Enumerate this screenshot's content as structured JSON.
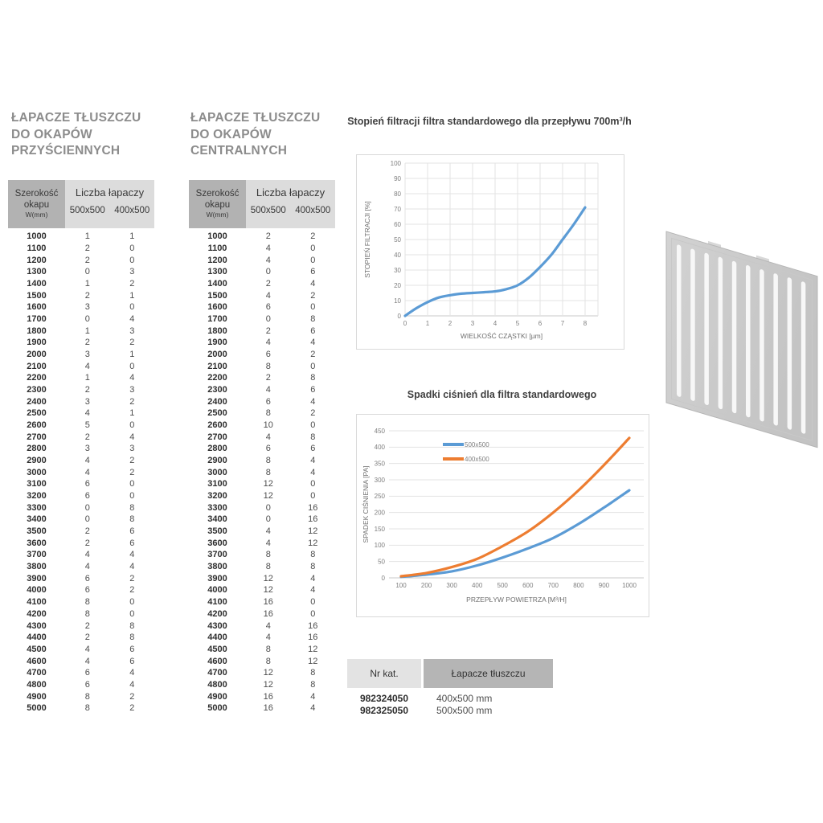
{
  "left_table": {
    "title_lines": [
      "ŁAPACZE TŁUSZCZU",
      "DO OKAPÓW",
      "PRZYŚCIENNYCH"
    ],
    "header": {
      "width_label": "Szerokość",
      "width_label2": "okapu",
      "width_unit": "W(mm)",
      "count_label": "Liczba łapaczy",
      "size_a": "500x500",
      "size_b": "400x500"
    },
    "rows": [
      [
        1000,
        1,
        1
      ],
      [
        1100,
        2,
        0
      ],
      [
        1200,
        2,
        0
      ],
      [
        1300,
        0,
        3
      ],
      [
        1400,
        1,
        2
      ],
      [
        1500,
        2,
        1
      ],
      [
        1600,
        3,
        0
      ],
      [
        1700,
        0,
        4
      ],
      [
        1800,
        1,
        3
      ],
      [
        1900,
        2,
        2
      ],
      [
        2000,
        3,
        1
      ],
      [
        2100,
        4,
        0
      ],
      [
        2200,
        1,
        4
      ],
      [
        2300,
        2,
        3
      ],
      [
        2400,
        3,
        2
      ],
      [
        2500,
        4,
        1
      ],
      [
        2600,
        5,
        0
      ],
      [
        2700,
        2,
        4
      ],
      [
        2800,
        3,
        3
      ],
      [
        2900,
        4,
        2
      ],
      [
        3000,
        4,
        2
      ],
      [
        3100,
        6,
        0
      ],
      [
        3200,
        6,
        0
      ],
      [
        3300,
        0,
        8
      ],
      [
        3400,
        0,
        8
      ],
      [
        3500,
        2,
        6
      ],
      [
        3600,
        2,
        6
      ],
      [
        3700,
        4,
        4
      ],
      [
        3800,
        4,
        4
      ],
      [
        3900,
        6,
        2
      ],
      [
        4000,
        6,
        2
      ],
      [
        4100,
        8,
        0
      ],
      [
        4200,
        8,
        0
      ],
      [
        4300,
        2,
        8
      ],
      [
        4400,
        2,
        8
      ],
      [
        4500,
        4,
        6
      ],
      [
        4600,
        4,
        6
      ],
      [
        4700,
        6,
        4
      ],
      [
        4800,
        6,
        4
      ],
      [
        4900,
        8,
        2
      ],
      [
        5000,
        8,
        2
      ]
    ]
  },
  "center_table": {
    "title_lines": [
      "ŁAPACZE TŁUSZCZU",
      "DO OKAPÓW",
      "CENTRALNYCH"
    ],
    "header": {
      "width_label": "Szerokość",
      "width_label2": "okapu",
      "width_unit": "W(mm)",
      "count_label": "Liczba łapaczy",
      "size_a": "500x500",
      "size_b": "400x500"
    },
    "rows": [
      [
        1000,
        2,
        2
      ],
      [
        1100,
        4,
        0
      ],
      [
        1200,
        4,
        0
      ],
      [
        1300,
        0,
        6
      ],
      [
        1400,
        2,
        4
      ],
      [
        1500,
        4,
        2
      ],
      [
        1600,
        6,
        0
      ],
      [
        1700,
        0,
        8
      ],
      [
        1800,
        2,
        6
      ],
      [
        1900,
        4,
        4
      ],
      [
        2000,
        6,
        2
      ],
      [
        2100,
        8,
        0
      ],
      [
        2200,
        2,
        8
      ],
      [
        2300,
        4,
        6
      ],
      [
        2400,
        6,
        4
      ],
      [
        2500,
        8,
        2
      ],
      [
        2600,
        10,
        0
      ],
      [
        2700,
        4,
        8
      ],
      [
        2800,
        6,
        6
      ],
      [
        2900,
        8,
        4
      ],
      [
        3000,
        8,
        4
      ],
      [
        3100,
        12,
        0
      ],
      [
        3200,
        12,
        0
      ],
      [
        3300,
        0,
        16
      ],
      [
        3400,
        0,
        16
      ],
      [
        3500,
        4,
        12
      ],
      [
        3600,
        4,
        12
      ],
      [
        3700,
        8,
        8
      ],
      [
        3800,
        8,
        8
      ],
      [
        3900,
        12,
        4
      ],
      [
        4000,
        12,
        4
      ],
      [
        4100,
        16,
        0
      ],
      [
        4200,
        16,
        0
      ],
      [
        4300,
        4,
        16
      ],
      [
        4400,
        4,
        16
      ],
      [
        4500,
        8,
        12
      ],
      [
        4600,
        8,
        12
      ],
      [
        4700,
        12,
        8
      ],
      [
        4800,
        12,
        8
      ],
      [
        4900,
        16,
        4
      ],
      [
        5000,
        16,
        4
      ]
    ]
  },
  "catalog": {
    "header_nr": "Nr kat.",
    "header_product": "Łapacze tłuszczu",
    "rows": [
      [
        "982324050",
        "400x500 mm"
      ],
      [
        "982325050",
        "500x500 mm"
      ]
    ]
  },
  "chart_data": [
    {
      "type": "line",
      "title": "Stopień filtracji filtra standardowego dla przepływu 700m³/h",
      "xlabel": "WIELKOŚĆ CZĄSTKI [µm]",
      "ylabel": "STOPIEŃ FILTRACJI [%]",
      "xlim": [
        0,
        8
      ],
      "ylim": [
        0,
        100
      ],
      "xtick_step": 1,
      "ytick_step": 10,
      "grid": true,
      "legend": false,
      "series": [
        {
          "name": "",
          "color": "#5b9bd5",
          "x": [
            0,
            0.5,
            1,
            1.5,
            2,
            2.5,
            3,
            3.5,
            4,
            4.5,
            5,
            5.5,
            6,
            6.5,
            7,
            7.5,
            8
          ],
          "y": [
            0,
            5,
            9,
            12,
            13.5,
            14.5,
            15,
            15.5,
            16,
            17.5,
            20,
            25,
            32,
            40,
            50,
            60,
            71
          ]
        }
      ]
    },
    {
      "type": "line",
      "title": "Spadki ciśnień dla filtra standardowego",
      "xlabel": "PRZEPŁYW POWIETRZA [M³/H]",
      "ylabel": "SPADEK CIŚNIENIA [PA]",
      "xlim": [
        100,
        1000
      ],
      "ylim": [
        0,
        450
      ],
      "xtick_step": 100,
      "ytick_step": 50,
      "grid": true,
      "legend": true,
      "legend_position": "top-left-inside",
      "series": [
        {
          "name": "500x500",
          "color": "#5b9bd5",
          "x": [
            100,
            200,
            300,
            400,
            500,
            600,
            700,
            800,
            900,
            1000
          ],
          "y": [
            3,
            10,
            20,
            38,
            62,
            90,
            122,
            165,
            215,
            268
          ]
        },
        {
          "name": "400x500",
          "color": "#ed7d31",
          "x": [
            100,
            200,
            300,
            400,
            500,
            600,
            700,
            800,
            900,
            1000
          ],
          "y": [
            5,
            15,
            33,
            58,
            97,
            142,
            200,
            268,
            345,
            428
          ]
        }
      ]
    }
  ]
}
